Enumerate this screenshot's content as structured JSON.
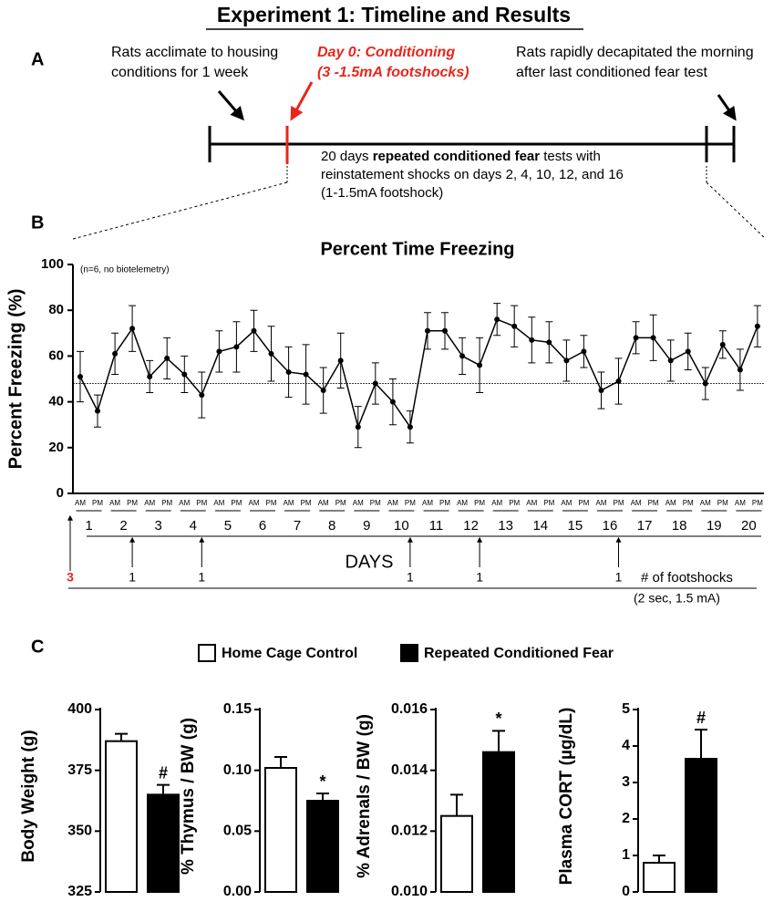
{
  "title": "Experiment 1: Timeline and Results",
  "panels": [
    "A",
    "B",
    "C"
  ],
  "timeline": {
    "left_note": [
      "Rats acclimate to housing",
      "conditions for 1 week"
    ],
    "conditioning": [
      "Day 0: Conditioning",
      "(3 -1.5mA footshocks)"
    ],
    "right_note": [
      "Rats rapidly decapitated the morning",
      "after last conditioned fear test"
    ],
    "middle": {
      "line1": [
        "20 days ",
        "repeated conditioned fear",
        " tests with"
      ],
      "line2": "reinstatement shocks on days 2, 4, 10, 12, and 16",
      "line3": "(1-1.5mA footshock)"
    }
  },
  "legend": [
    {
      "name": "Home Cage Control",
      "color": "#ffffff"
    },
    {
      "name": "Repeated Conditioned Fear",
      "color": "#000000"
    }
  ],
  "chart_data": [
    {
      "type": "line",
      "title": "Percent Time Freezing",
      "note": "(n=6, no biotelemetry)",
      "ylabel": "Percent Freezing (%)",
      "xlabel": "DAYS",
      "categories": [
        "AM",
        "PM",
        "AM",
        "PM",
        "AM",
        "PM",
        "AM",
        "PM",
        "AM",
        "PM",
        "AM",
        "PM",
        "AM",
        "PM",
        "AM",
        "PM",
        "AM",
        "PM",
        "AM",
        "PM",
        "AM",
        "PM",
        "AM",
        "PM",
        "AM",
        "PM",
        "AM",
        "PM",
        "AM",
        "PM",
        "AM",
        "PM",
        "AM",
        "PM",
        "AM",
        "PM",
        "AM",
        "PM",
        "AM",
        "PM"
      ],
      "days": [
        "1",
        "2",
        "3",
        "4",
        "5",
        "6",
        "7",
        "8",
        "9",
        "10",
        "11",
        "12",
        "13",
        "14",
        "15",
        "16",
        "17",
        "18",
        "19",
        "20"
      ],
      "values": [
        51,
        36,
        61,
        72,
        51,
        59,
        52,
        43,
        62,
        64,
        71,
        61,
        53,
        52,
        45,
        58,
        29,
        48,
        40,
        29,
        71,
        71,
        60,
        56,
        76,
        73,
        67,
        66,
        58,
        62,
        45,
        49,
        68,
        68,
        58,
        62,
        48,
        65,
        54,
        73
      ],
      "errors": [
        11,
        7,
        9,
        10,
        7,
        9,
        8,
        10,
        9,
        11,
        9,
        12,
        11,
        13,
        10,
        12,
        9,
        9,
        10,
        7,
        8,
        8,
        8,
        12,
        7,
        9,
        10,
        9,
        9,
        7,
        8,
        10,
        7,
        10,
        9,
        8,
        7,
        6,
        9,
        9
      ],
      "reference_line": 48,
      "color": "#000000",
      "ylim": [
        0,
        100
      ],
      "yticks": [
        0,
        20,
        40,
        60,
        80,
        100
      ],
      "footshocks": [
        3,
        1,
        null,
        1,
        null,
        null,
        null,
        null,
        null,
        1,
        null,
        1,
        null,
        null,
        null,
        1,
        null,
        null,
        null,
        null
      ],
      "footshocks_label": "# of footshocks",
      "footshocks_note": "(2 sec, 1.5 mA)"
    },
    {
      "type": "bar",
      "ylabel": "Body Weight (g)",
      "values": [
        387,
        365
      ],
      "errors": [
        3,
        4
      ],
      "annotations": [
        null,
        "#"
      ],
      "ylim": [
        325,
        400
      ],
      "yticks": [
        325,
        350,
        375,
        400
      ]
    },
    {
      "type": "bar",
      "ylabel": "% Thymus / BW (g)",
      "values": [
        0.102,
        0.075
      ],
      "errors": [
        0.009,
        0.006
      ],
      "annotations": [
        null,
        "*"
      ],
      "ylim": [
        0,
        0.15
      ],
      "yticks": [
        {
          "value": 0,
          "label": "0.00"
        },
        0.05,
        {
          "value": 0.1,
          "label": "0.10"
        },
        0.15
      ]
    },
    {
      "type": "bar",
      "ylabel": "% Adrenals / BW (g)",
      "values": [
        0.0125,
        0.0146
      ],
      "errors": [
        0.0007,
        0.0007
      ],
      "annotations": [
        null,
        "*"
      ],
      "ylim": [
        0.01,
        0.016
      ],
      "yticks": [
        {
          "value": 0.01,
          "label": "0.010"
        },
        {
          "value": 0.012,
          "label": "0.012"
        },
        {
          "value": 0.014,
          "label": "0.014"
        },
        {
          "value": 0.016,
          "label": "0.016"
        }
      ]
    },
    {
      "type": "bar",
      "ylabel": "Plasma CORT (µg/dL)",
      "values": [
        0.8,
        3.65
      ],
      "errors": [
        0.2,
        0.8
      ],
      "annotations": [
        null,
        "#"
      ],
      "ylim": [
        0,
        5
      ],
      "yticks": [
        0,
        1,
        2,
        3,
        4,
        5
      ]
    }
  ]
}
